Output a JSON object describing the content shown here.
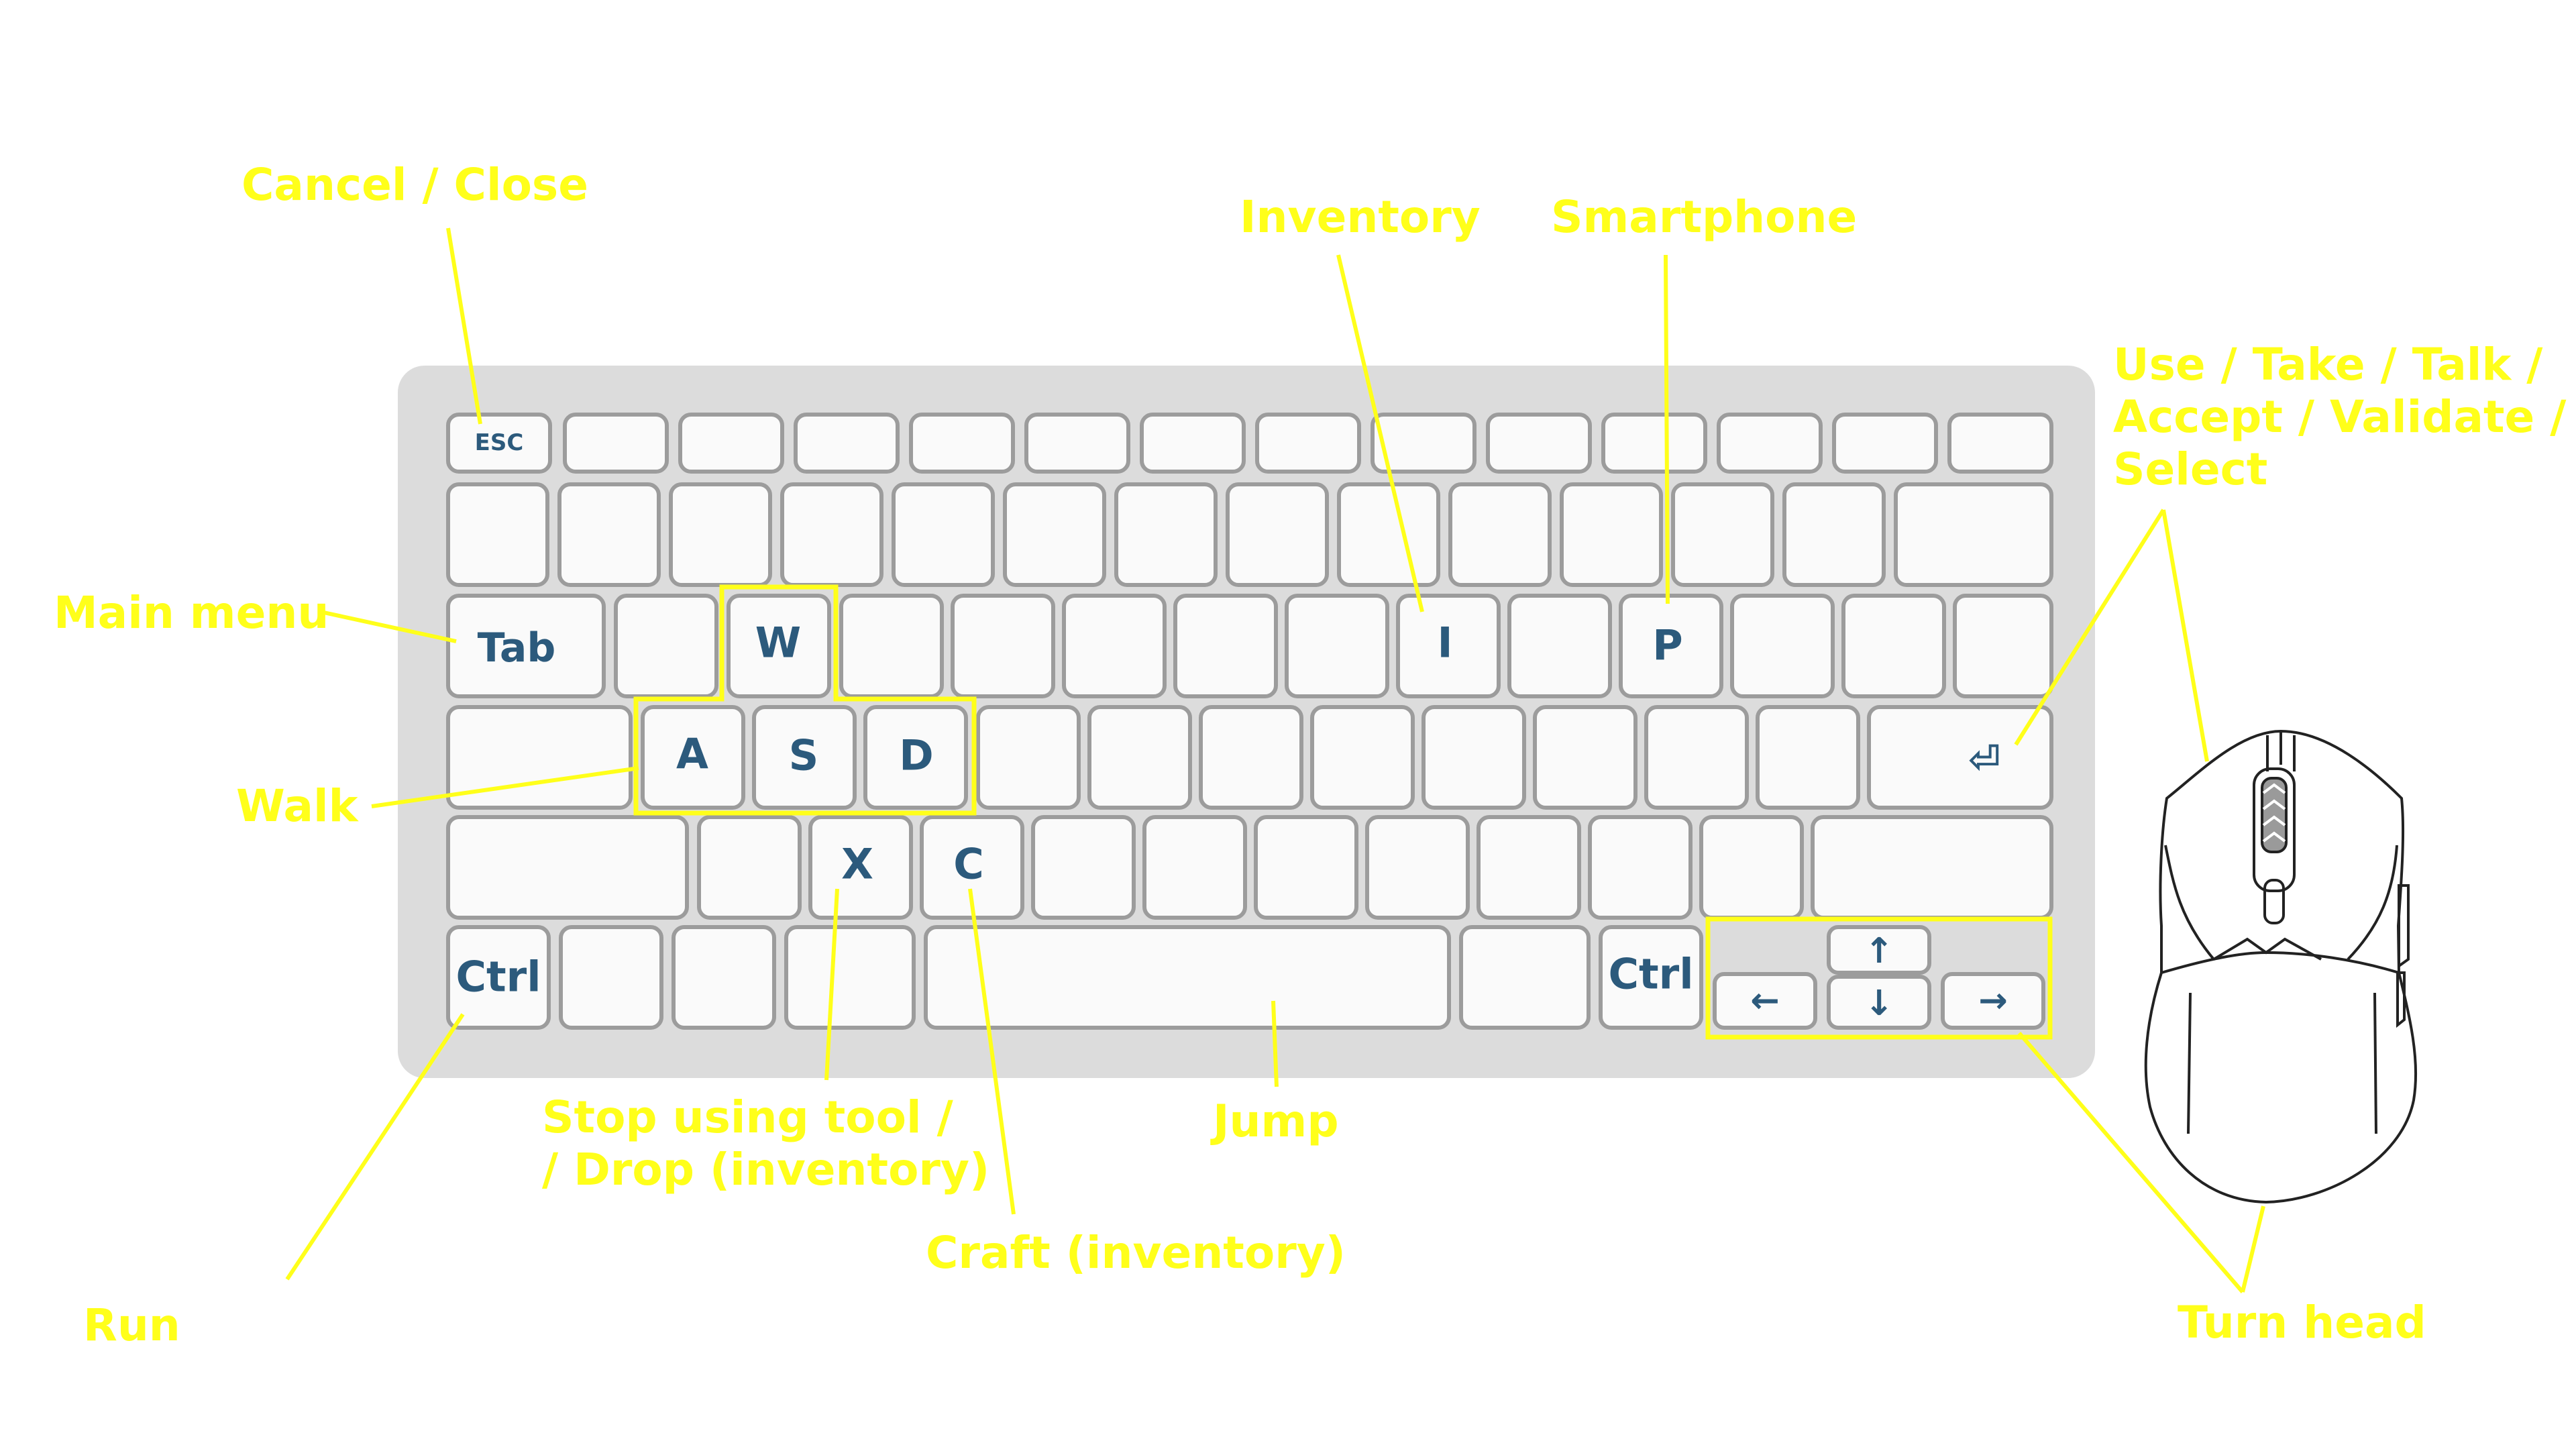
{
  "keys": {
    "esc": "ESC",
    "tab": "Tab",
    "w": "W",
    "i": "I",
    "p": "P",
    "a": "A",
    "s": "S",
    "d": "D",
    "enter": "⏎",
    "x": "X",
    "c": "C",
    "ctrl_left": "Ctrl",
    "ctrl_right": "Ctrl",
    "up": "↑",
    "down": "↓",
    "left": "←",
    "right": "→"
  },
  "labels": {
    "cancel_close": "Cancel / Close",
    "inventory": "Inventory",
    "smartphone": "Smartphone",
    "use_take": [
      "Use / Take / Talk /",
      "Accept / Validate /",
      "Select"
    ],
    "main_menu": "Main menu",
    "walk": "Walk",
    "stop_drop": [
      "Stop using tool /",
      "/ Drop (inventory)"
    ],
    "jump": "Jump",
    "craft": "Craft (inventory)",
    "run": "Run",
    "turn_head": "Turn head"
  },
  "colors": {
    "callout": "#ffff1a",
    "key_text": "#2c5a7c",
    "keyboard_body": "#dcdcdc",
    "key_fill": "#fafafa"
  }
}
